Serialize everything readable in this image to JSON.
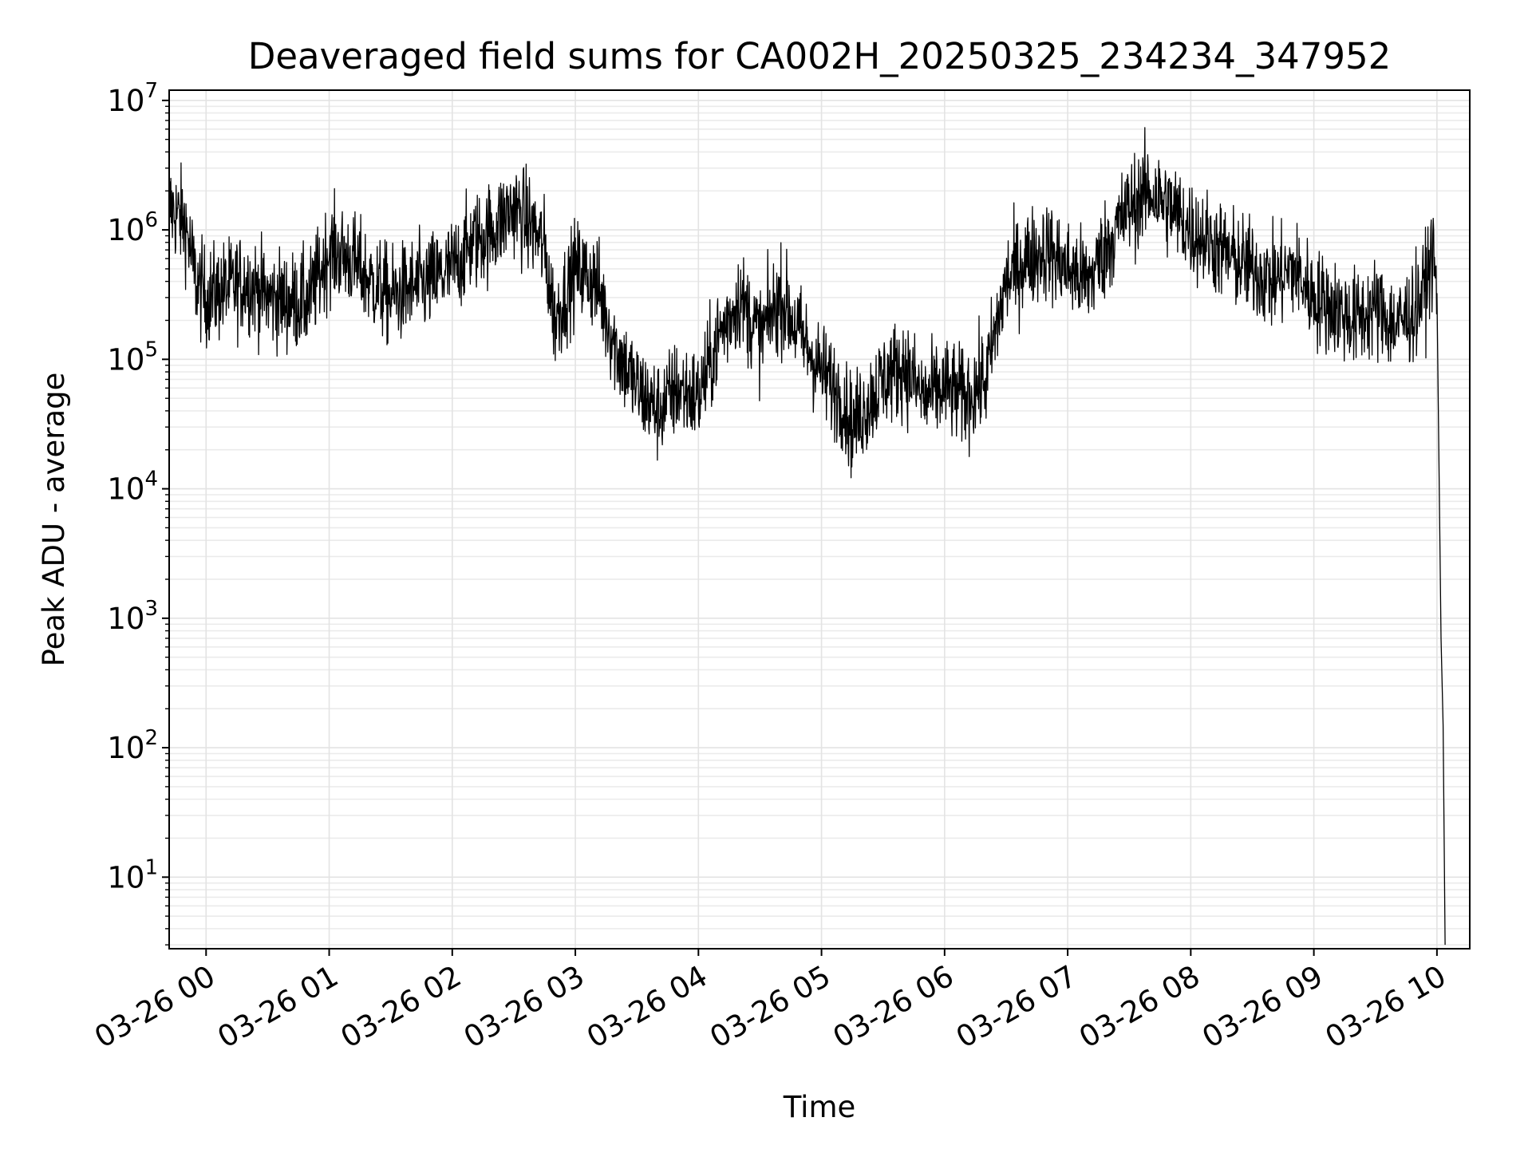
{
  "chart_data": {
    "type": "line",
    "title": "Deaveraged field sums for CA002H_20250325_234234_347952",
    "xlabel": "Time",
    "ylabel": "Peak ADU - average",
    "yscale": "log",
    "ylim": [
      2.8,
      12000000
    ],
    "xlim": [
      "03-25 23:42",
      "03-26 10:16"
    ],
    "grid": true,
    "x_ticks": [
      "03-26 00",
      "03-26 01",
      "03-26 02",
      "03-26 03",
      "03-26 04",
      "03-26 05",
      "03-26 06",
      "03-26 07",
      "03-26 08",
      "03-26 09",
      "03-26 10"
    ],
    "y_ticks": [
      {
        "base": "10",
        "exp": "1",
        "value": 10
      },
      {
        "base": "10",
        "exp": "2",
        "value": 100
      },
      {
        "base": "10",
        "exp": "3",
        "value": 1000
      },
      {
        "base": "10",
        "exp": "4",
        "value": 10000
      },
      {
        "base": "10",
        "exp": "5",
        "value": 100000
      },
      {
        "base": "10",
        "exp": "6",
        "value": 1000000
      },
      {
        "base": "10",
        "exp": "7",
        "value": 10000000
      }
    ],
    "series": [
      {
        "color": "#000000",
        "x": [
          "03-25 23:42",
          "03-25 23:46",
          "03-25 23:50",
          "03-25 23:55",
          "03-26 00:00",
          "03-26 00:10",
          "03-26 00:20",
          "03-26 00:30",
          "03-26 00:40",
          "03-26 00:50",
          "03-26 01:00",
          "03-26 01:10",
          "03-26 01:20",
          "03-26 01:30",
          "03-26 01:40",
          "03-26 01:50",
          "03-26 02:00",
          "03-26 02:10",
          "03-26 02:20",
          "03-26 02:30",
          "03-26 02:40",
          "03-26 02:45",
          "03-26 02:50",
          "03-26 03:00",
          "03-26 03:10",
          "03-26 03:20",
          "03-26 03:30",
          "03-26 03:40",
          "03-26 03:50",
          "03-26 04:00",
          "03-26 04:10",
          "03-26 04:20",
          "03-26 04:30",
          "03-26 04:40",
          "03-26 04:50",
          "03-26 05:00",
          "03-26 05:10",
          "03-26 05:15",
          "03-26 05:20",
          "03-26 05:30",
          "03-26 05:40",
          "03-26 05:50",
          "03-26 06:00",
          "03-26 06:10",
          "03-26 06:20",
          "03-26 06:30",
          "03-26 06:40",
          "03-26 06:50",
          "03-26 07:00",
          "03-26 07:10",
          "03-26 07:20",
          "03-26 07:30",
          "03-26 07:40",
          "03-26 07:50",
          "03-26 08:00",
          "03-26 08:10",
          "03-26 08:20",
          "03-26 08:30",
          "03-26 08:40",
          "03-26 08:50",
          "03-26 09:00",
          "03-26 09:10",
          "03-26 09:20",
          "03-26 09:30",
          "03-26 09:40",
          "03-26 09:50",
          "03-26 09:55",
          "03-26 09:58",
          "03-26 10:00",
          "03-26 10:02",
          "03-26 10:03",
          "03-26 10:04"
        ],
        "y": [
          1500000,
          1300000,
          1100000,
          400000,
          300000,
          350000,
          400000,
          300000,
          280000,
          280000,
          700000,
          600000,
          400000,
          300000,
          350000,
          400000,
          500000,
          800000,
          1000000,
          1500000,
          1000000,
          700000,
          200000,
          500000,
          400000,
          120000,
          60000,
          40000,
          60000,
          50000,
          150000,
          300000,
          150000,
          300000,
          150000,
          80000,
          50000,
          30000,
          40000,
          70000,
          90000,
          50000,
          60000,
          50000,
          70000,
          400000,
          600000,
          700000,
          500000,
          400000,
          800000,
          1500000,
          2000000,
          1500000,
          1000000,
          800000,
          600000,
          500000,
          400000,
          500000,
          300000,
          250000,
          200000,
          250000,
          180000,
          250000,
          400000,
          700000,
          300000,
          700,
          150,
          3
        ]
      }
    ]
  }
}
